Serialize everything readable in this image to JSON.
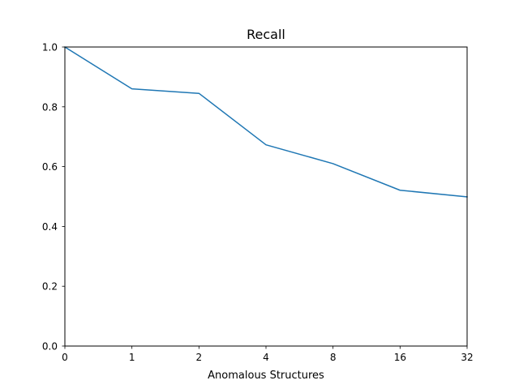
{
  "chart_data": {
    "type": "line",
    "title": "Recall",
    "xlabel": "Anomalous Structures",
    "ylabel": "",
    "categories": [
      "0",
      "1",
      "2",
      "4",
      "8",
      "16",
      "32"
    ],
    "series": [
      {
        "values": [
          1.0,
          0.86,
          0.845,
          0.673,
          0.61,
          0.521,
          0.499
        ]
      }
    ],
    "ylim": [
      0,
      1.0
    ],
    "yticks": [
      "0.0",
      "0.2",
      "0.4",
      "0.6",
      "0.8",
      "1.0"
    ],
    "grid": false,
    "line_color": "#1f77b4"
  }
}
